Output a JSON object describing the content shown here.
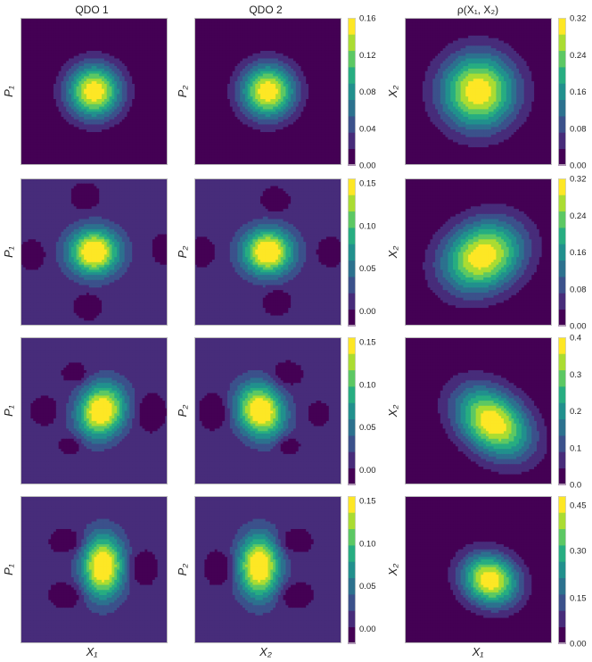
{
  "figure": {
    "column_titles": [
      "QDO 1",
      "QDO 2",
      "ρ(X₁, X₂)"
    ],
    "x_labels": [
      "X₁",
      "X₂",
      "X₁"
    ]
  },
  "chart_data": [
    {
      "row": 1,
      "panels": [
        {
          "type": "heatmap",
          "title": "QDO 1",
          "ylabel": "P₁",
          "xlabel": "",
          "base": 0,
          "blobs": [
            {
              "x": 0.5,
              "y": 0.5,
              "sx": 0.13,
              "sy": 0.13,
              "theta": 0,
              "amp": 1.0
            }
          ]
        },
        {
          "type": "heatmap",
          "title": "QDO 2",
          "ylabel": "P₂",
          "xlabel": "",
          "base": 0,
          "blobs": [
            {
              "x": 0.5,
              "y": 0.5,
              "sx": 0.13,
              "sy": 0.13,
              "theta": 0,
              "amp": 1.0
            }
          ]
        },
        {
          "type": "heatmap",
          "title": "ρ(X₁, X₂)",
          "ylabel": "X₂",
          "xlabel": "",
          "base": 0,
          "blobs": [
            {
              "x": 0.5,
              "y": 0.5,
              "sx": 0.18,
              "sy": 0.18,
              "theta": 0,
              "amp": 1.0
            }
          ]
        }
      ],
      "colorbars": [
        {
          "ticks": [
            "0.16",
            "0.12",
            "0.08",
            "0.04",
            "0.00"
          ],
          "tick_fracs": [
            1.0,
            0.75,
            0.5,
            0.25,
            0.0
          ]
        },
        {
          "ticks": [
            "0.32",
            "0.24",
            "0.16",
            "0.08",
            "0.00"
          ],
          "tick_fracs": [
            1.0,
            0.75,
            0.5,
            0.25,
            0.0
          ]
        }
      ]
    },
    {
      "row": 2,
      "panels": [
        {
          "type": "heatmap",
          "ylabel": "P₁",
          "xlabel": "",
          "base": 0.13,
          "blobs": [
            {
              "x": 0.5,
              "y": 0.5,
              "sx": 0.12,
              "sy": 0.11,
              "theta": 0,
              "amp": 0.95
            },
            {
              "x": 0.44,
              "y": 0.13,
              "sx": 0.05,
              "sy": 0.05,
              "theta": 0,
              "amp": -0.16
            },
            {
              "x": 0.46,
              "y": 0.86,
              "sx": 0.05,
              "sy": 0.05,
              "theta": 0,
              "amp": -0.16
            },
            {
              "x": 0.08,
              "y": 0.52,
              "sx": 0.05,
              "sy": 0.05,
              "theta": 0,
              "amp": -0.16
            },
            {
              "x": 0.97,
              "y": 0.48,
              "sx": 0.04,
              "sy": 0.05,
              "theta": 0,
              "amp": -0.16
            }
          ]
        },
        {
          "type": "heatmap",
          "ylabel": "P₂",
          "xlabel": "",
          "base": 0.13,
          "blobs": [
            {
              "x": 0.5,
              "y": 0.5,
              "sx": 0.12,
              "sy": 0.11,
              "theta": 0,
              "amp": 0.95
            },
            {
              "x": 0.55,
              "y": 0.16,
              "sx": 0.05,
              "sy": 0.05,
              "theta": 0,
              "amp": -0.16
            },
            {
              "x": 0.56,
              "y": 0.83,
              "sx": 0.05,
              "sy": 0.05,
              "theta": 0,
              "amp": -0.16
            },
            {
              "x": 0.05,
              "y": 0.5,
              "sx": 0.05,
              "sy": 0.05,
              "theta": 0,
              "amp": -0.16
            },
            {
              "x": 0.92,
              "y": 0.5,
              "sx": 0.05,
              "sy": 0.05,
              "theta": 0,
              "amp": -0.16
            }
          ]
        },
        {
          "type": "heatmap",
          "ylabel": "X₂",
          "xlabel": "",
          "base": 0,
          "blobs": [
            {
              "x": 0.53,
              "y": 0.53,
              "sx": 0.2,
              "sy": 0.16,
              "theta": -0.5,
              "amp": 1.0
            }
          ]
        }
      ],
      "colorbars": [
        {
          "ticks": [
            "0.15",
            "0.10",
            "0.05",
            "0.00"
          ],
          "tick_fracs": [
            0.97,
            0.68,
            0.39,
            0.1
          ]
        },
        {
          "ticks": [
            "0.32",
            "0.24",
            "0.16",
            "0.08",
            "0.00"
          ],
          "tick_fracs": [
            1.0,
            0.75,
            0.5,
            0.25,
            0.0
          ]
        }
      ]
    },
    {
      "row": 3,
      "panels": [
        {
          "type": "heatmap",
          "ylabel": "P₁",
          "xlabel": "",
          "base": 0.13,
          "blobs": [
            {
              "x": 0.55,
              "y": 0.5,
              "sx": 0.11,
              "sy": 0.13,
              "theta": 0.4,
              "amp": 0.95
            },
            {
              "x": 0.38,
              "y": 0.25,
              "sx": 0.05,
              "sy": 0.04,
              "theta": 0,
              "amp": -0.16
            },
            {
              "x": 0.35,
              "y": 0.73,
              "sx": 0.05,
              "sy": 0.04,
              "theta": 0,
              "amp": -0.16
            },
            {
              "x": 0.17,
              "y": 0.5,
              "sx": 0.05,
              "sy": 0.05,
              "theta": 0,
              "amp": -0.16
            },
            {
              "x": 0.87,
              "y": 0.51,
              "sx": 0.06,
              "sy": 0.07,
              "theta": 0,
              "amp": -0.16
            }
          ]
        },
        {
          "type": "heatmap",
          "ylabel": "P₂",
          "xlabel": "",
          "base": 0.13,
          "blobs": [
            {
              "x": 0.45,
              "y": 0.5,
              "sx": 0.11,
              "sy": 0.13,
              "theta": -0.4,
              "amp": 0.95
            },
            {
              "x": 0.62,
              "y": 0.26,
              "sx": 0.06,
              "sy": 0.05,
              "theta": 0,
              "amp": -0.16
            },
            {
              "x": 0.63,
              "y": 0.73,
              "sx": 0.05,
              "sy": 0.04,
              "theta": 0,
              "amp": -0.16
            },
            {
              "x": 0.15,
              "y": 0.5,
              "sx": 0.06,
              "sy": 0.07,
              "theta": 0,
              "amp": -0.16
            },
            {
              "x": 0.84,
              "y": 0.52,
              "sx": 0.04,
              "sy": 0.04,
              "theta": 0,
              "amp": -0.16
            }
          ]
        },
        {
          "type": "heatmap",
          "ylabel": "X₂",
          "xlabel": "",
          "base": 0,
          "blobs": [
            {
              "x": 0.6,
              "y": 0.58,
              "sx": 0.2,
              "sy": 0.14,
              "theta": 0.7,
              "amp": 1.0
            }
          ]
        }
      ],
      "colorbars": [
        {
          "ticks": [
            "0.15",
            "0.10",
            "0.05",
            "0.00"
          ],
          "tick_fracs": [
            0.97,
            0.68,
            0.39,
            0.1
          ]
        },
        {
          "ticks": [
            "0.4",
            "0.3",
            "0.2",
            "0.1",
            "0.0"
          ],
          "tick_fracs": [
            1.0,
            0.75,
            0.5,
            0.25,
            0.0
          ]
        }
      ]
    },
    {
      "row": 4,
      "panels": [
        {
          "type": "heatmap",
          "ylabel": "P₁",
          "xlabel": "X₁",
          "base": 0.13,
          "blobs": [
            {
              "x": 0.56,
              "y": 0.48,
              "sx": 0.1,
              "sy": 0.15,
              "theta": 0,
              "amp": 0.95
            },
            {
              "x": 0.34,
              "y": 0.31,
              "sx": 0.07,
              "sy": 0.05,
              "theta": 0,
              "amp": -0.16
            },
            {
              "x": 0.33,
              "y": 0.67,
              "sx": 0.07,
              "sy": 0.05,
              "theta": 0,
              "amp": -0.16
            },
            {
              "x": 0.81,
              "y": 0.49,
              "sx": 0.06,
              "sy": 0.07,
              "theta": 0,
              "amp": -0.16
            }
          ]
        },
        {
          "type": "heatmap",
          "ylabel": "P₂",
          "xlabel": "X₂",
          "base": 0.13,
          "blobs": [
            {
              "x": 0.44,
              "y": 0.48,
              "sx": 0.1,
              "sy": 0.15,
              "theta": 0,
              "amp": 0.95
            },
            {
              "x": 0.66,
              "y": 0.31,
              "sx": 0.07,
              "sy": 0.05,
              "theta": 0,
              "amp": -0.16
            },
            {
              "x": 0.67,
              "y": 0.67,
              "sx": 0.07,
              "sy": 0.05,
              "theta": 0,
              "amp": -0.16
            },
            {
              "x": 0.19,
              "y": 0.49,
              "sx": 0.06,
              "sy": 0.07,
              "theta": 0,
              "amp": -0.16
            }
          ]
        },
        {
          "type": "heatmap",
          "ylabel": "X₂",
          "xlabel": "X₁",
          "base": 0,
          "blobs": [
            {
              "x": 0.58,
              "y": 0.57,
              "sx": 0.14,
              "sy": 0.12,
              "theta": 0.5,
              "amp": 1.0
            }
          ]
        }
      ],
      "colorbars": [
        {
          "ticks": [
            "0.15",
            "0.10",
            "0.05",
            "0.00"
          ],
          "tick_fracs": [
            0.97,
            0.68,
            0.39,
            0.1
          ]
        },
        {
          "ticks": [
            "0.45",
            "0.30",
            "0.15",
            "0.00"
          ],
          "tick_fracs": [
            0.94,
            0.63,
            0.31,
            0.0
          ]
        }
      ]
    }
  ],
  "colormap": [
    "#440154",
    "#472c7a",
    "#3b518b",
    "#2c718e",
    "#21908d",
    "#27ad81",
    "#5cc863",
    "#aadc32",
    "#fde725"
  ]
}
